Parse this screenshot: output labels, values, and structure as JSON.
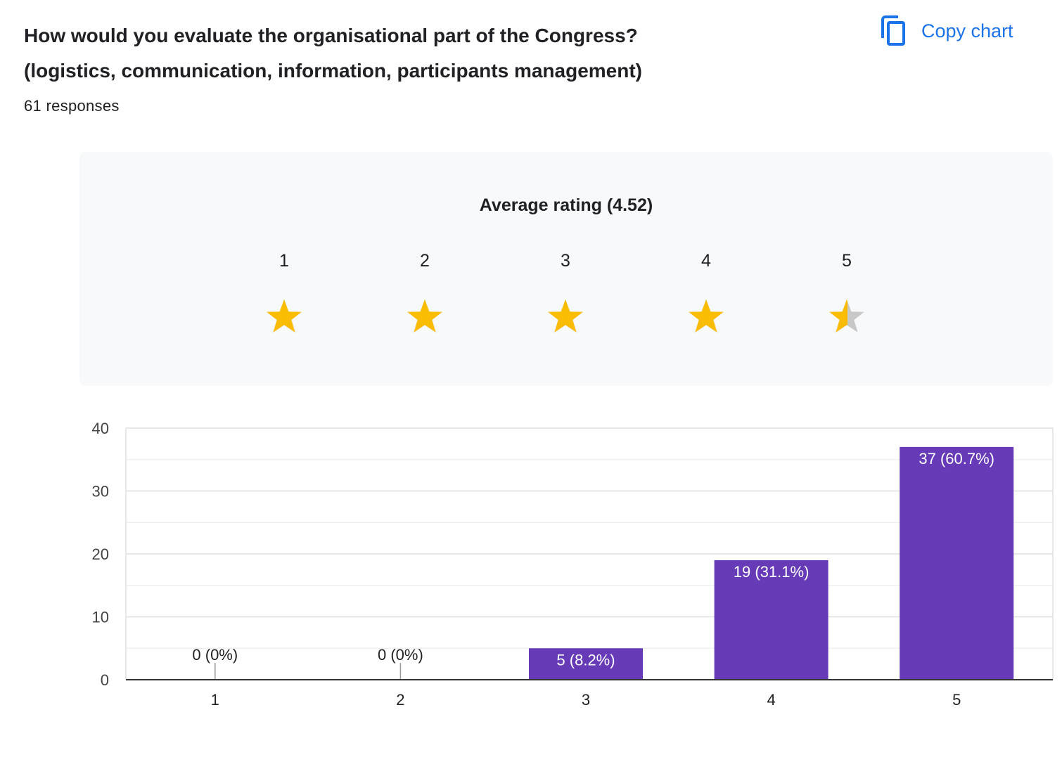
{
  "question": {
    "title_line1": "How would you evaluate the organisational part of the Congress?",
    "title_line2": "(logistics, communication, information, participants management)",
    "responses": "61 responses"
  },
  "copy_chart": {
    "label": "Copy chart",
    "icon": "copy-icon"
  },
  "rating": {
    "average_label": "Average rating (4.52)",
    "average": 4.52,
    "stars": [
      {
        "label": "1",
        "fill": 1
      },
      {
        "label": "2",
        "fill": 1
      },
      {
        "label": "3",
        "fill": 1
      },
      {
        "label": "4",
        "fill": 1
      },
      {
        "label": "5",
        "fill": 0.52
      }
    ],
    "colors": {
      "star": "#fbbc04",
      "star_empty": "#c8c8c8",
      "panel": "#f8f9fa"
    }
  },
  "chart_data": {
    "type": "bar",
    "categories": [
      "1",
      "2",
      "3",
      "4",
      "5"
    ],
    "values": [
      0,
      0,
      5,
      19,
      37
    ],
    "data_labels": [
      "0 (0%)",
      "0 (0%)",
      "5 (8.2%)",
      "19 (31.1%)",
      "37 (60.7%)"
    ],
    "ylim": [
      0,
      40
    ],
    "yticks": [
      0,
      10,
      20,
      30,
      40
    ],
    "grid": true,
    "bar_color": "#673ab7",
    "title": "",
    "xlabel": "",
    "ylabel": ""
  }
}
